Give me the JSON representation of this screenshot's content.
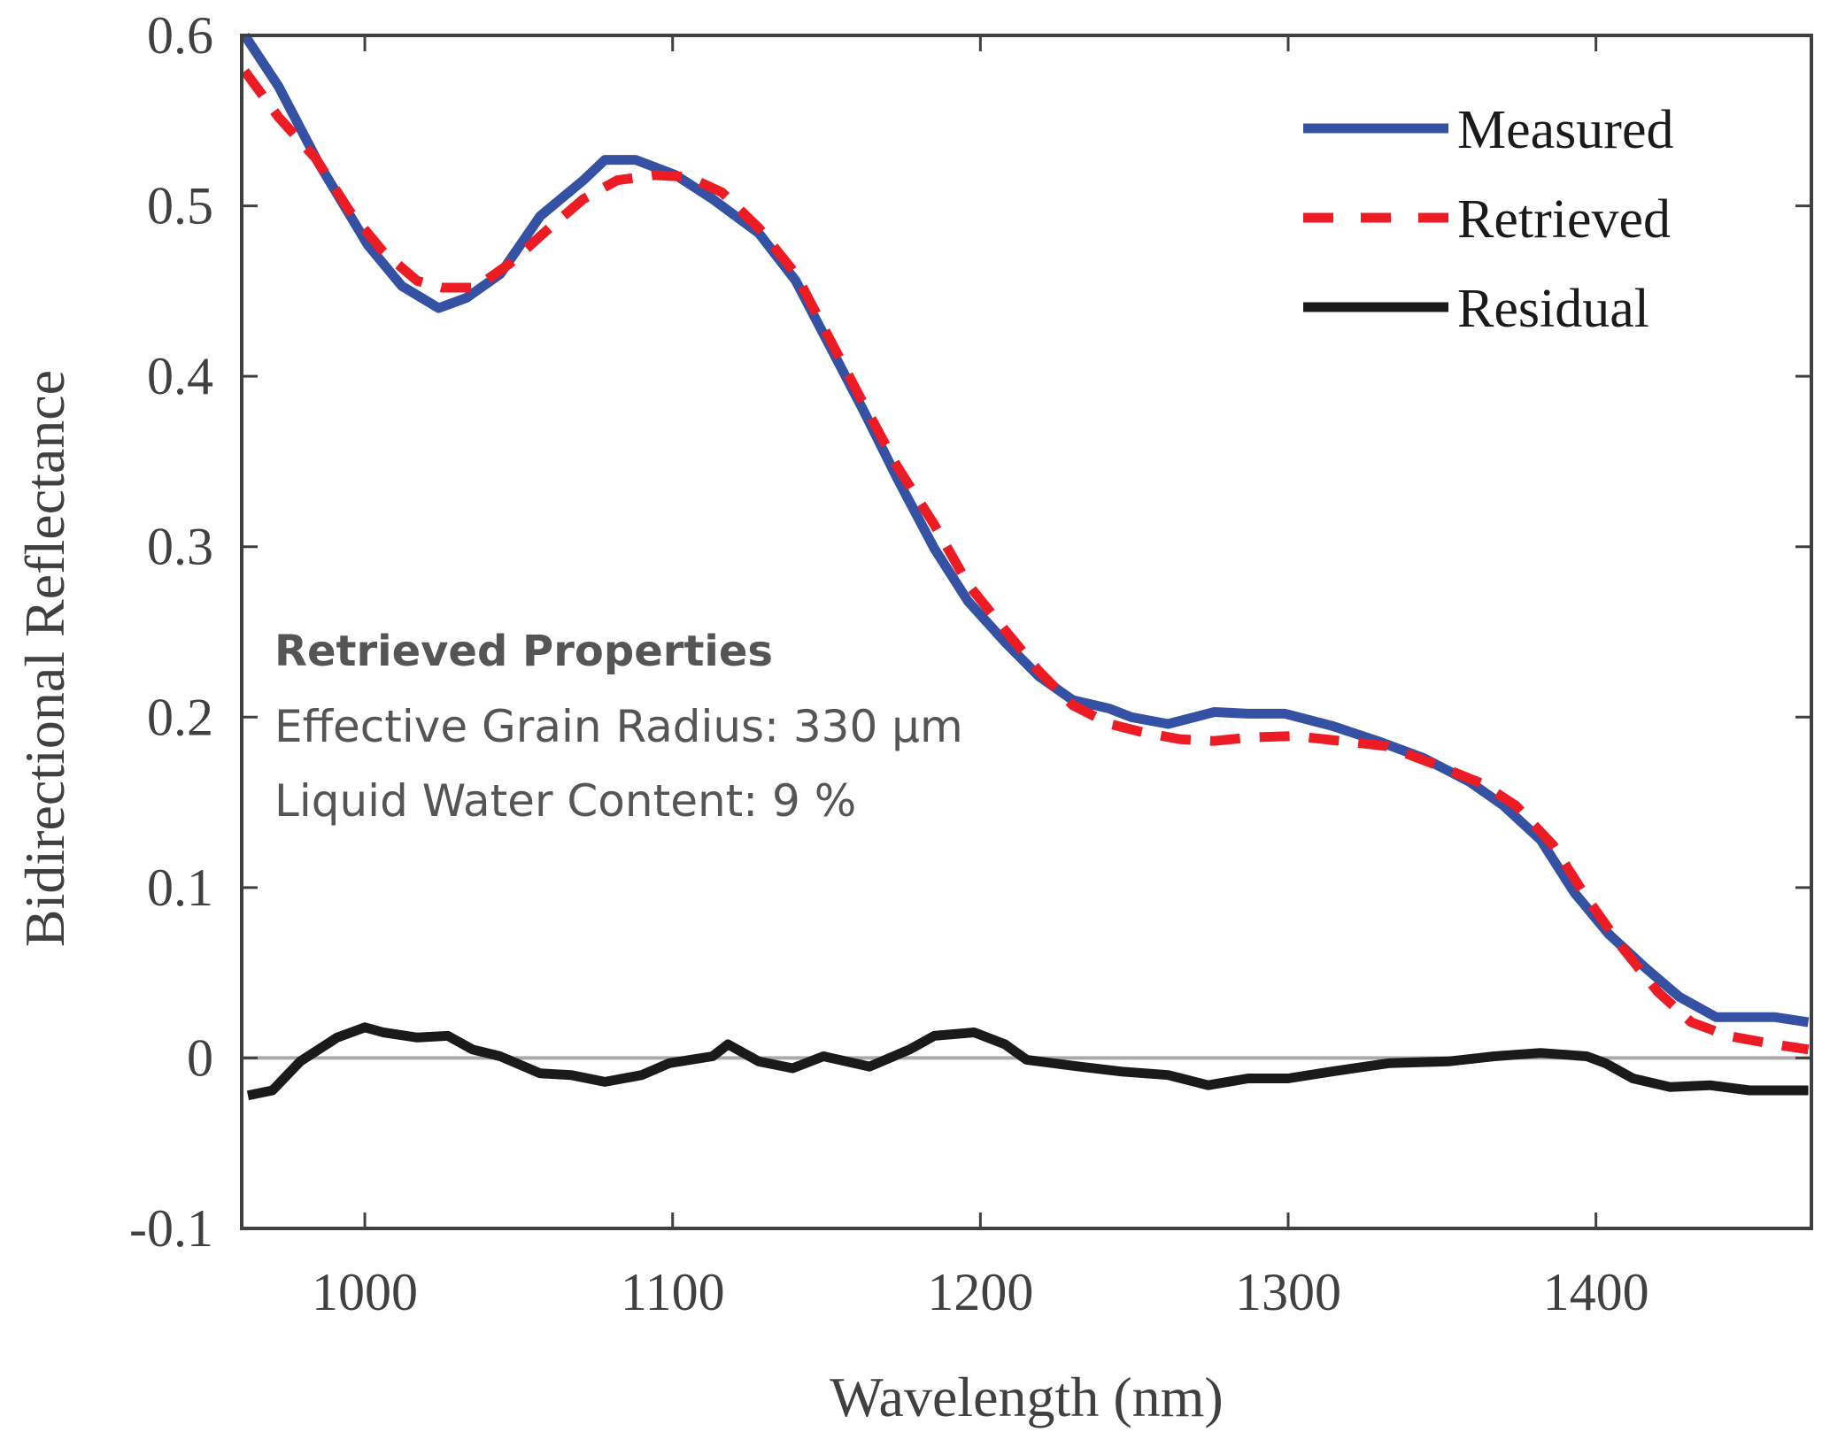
{
  "chart_data": {
    "type": "line",
    "title": "",
    "xlabel": "Wavelength (nm)",
    "ylabel": "Bidirectional Reflectance",
    "xlim": [
      960,
      1470
    ],
    "ylim": [
      -0.1,
      0.6
    ],
    "xticks": [
      1000,
      1100,
      1200,
      1300,
      1400
    ],
    "xtick_labels": [
      "1000",
      "1100",
      "1200",
      "1300",
      "1400"
    ],
    "yticks": [
      -0.1,
      0,
      0.1,
      0.2,
      0.3,
      0.4,
      0.5,
      0.6
    ],
    "ytick_labels": [
      "-0.1",
      "0",
      "0.1",
      "0.2",
      "0.3",
      "0.4",
      "0.5",
      "0.6"
    ],
    "grid": false,
    "zero_line": true,
    "legend_position": "top-right",
    "series": [
      {
        "name": "Measured",
        "color": "#3551a4",
        "style": "solid",
        "x": [
          961,
          972,
          985,
          1001,
          1012,
          1024,
          1033,
          1044,
          1057,
          1071,
          1078,
          1088,
          1101,
          1113,
          1128,
          1140,
          1151,
          1162,
          1173,
          1185,
          1196,
          1208,
          1219,
          1230,
          1242,
          1249,
          1261,
          1276,
          1287,
          1299,
          1314,
          1329,
          1344,
          1359,
          1370,
          1382,
          1393,
          1404,
          1416,
          1427,
          1439,
          1458,
          1469
        ],
        "y": [
          0.6,
          0.57,
          0.525,
          0.477,
          0.453,
          0.44,
          0.446,
          0.46,
          0.494,
          0.515,
          0.527,
          0.527,
          0.518,
          0.504,
          0.484,
          0.456,
          0.418,
          0.38,
          0.34,
          0.299,
          0.268,
          0.244,
          0.224,
          0.21,
          0.205,
          0.2,
          0.196,
          0.203,
          0.202,
          0.202,
          0.195,
          0.186,
          0.176,
          0.162,
          0.148,
          0.128,
          0.097,
          0.073,
          0.053,
          0.036,
          0.024,
          0.024,
          0.021
        ]
      },
      {
        "name": "Retrieved",
        "color": "#ed1c24",
        "style": "dashed",
        "x": [
          961,
          972,
          984,
          995,
          1006,
          1017,
          1025,
          1036,
          1047,
          1060,
          1071,
          1082,
          1094,
          1105,
          1116,
          1128,
          1140,
          1151,
          1162,
          1173,
          1185,
          1196,
          1208,
          1219,
          1230,
          1242,
          1253,
          1265,
          1276,
          1287,
          1302,
          1317,
          1332,
          1348,
          1363,
          1374,
          1386,
          1397,
          1408,
          1420,
          1431,
          1443,
          1458,
          1469
        ],
        "y": [
          0.579,
          0.552,
          0.528,
          0.497,
          0.473,
          0.456,
          0.452,
          0.452,
          0.466,
          0.487,
          0.504,
          0.515,
          0.518,
          0.517,
          0.508,
          0.487,
          0.46,
          0.422,
          0.384,
          0.347,
          0.313,
          0.278,
          0.251,
          0.227,
          0.207,
          0.196,
          0.191,
          0.187,
          0.186,
          0.188,
          0.189,
          0.186,
          0.183,
          0.172,
          0.161,
          0.148,
          0.125,
          0.094,
          0.066,
          0.039,
          0.021,
          0.013,
          0.008,
          0.005
        ]
      },
      {
        "name": "Residual",
        "color": "#1a1a1a",
        "style": "solid",
        "x": [
          962,
          970,
          979,
          991,
          1000,
          1006,
          1017,
          1027,
          1035,
          1044,
          1057,
          1067,
          1078,
          1090,
          1099,
          1113,
          1118,
          1128,
          1139,
          1149,
          1164,
          1177,
          1185,
          1198,
          1208,
          1215,
          1232,
          1246,
          1261,
          1274,
          1287,
          1300,
          1314,
          1333,
          1352,
          1367,
          1382,
          1397,
          1403,
          1412,
          1424,
          1437,
          1450,
          1469
        ],
        "y": [
          -0.022,
          -0.019,
          -0.002,
          0.012,
          0.018,
          0.015,
          0.012,
          0.013,
          0.005,
          0.001,
          -0.009,
          -0.01,
          -0.014,
          -0.01,
          -0.003,
          0.001,
          0.008,
          -0.002,
          -0.006,
          0.001,
          -0.005,
          0.005,
          0.013,
          0.015,
          0.008,
          -0.001,
          -0.005,
          -0.008,
          -0.01,
          -0.016,
          -0.012,
          -0.012,
          -0.008,
          -0.003,
          -0.002,
          0.001,
          0.003,
          0.001,
          -0.003,
          -0.012,
          -0.017,
          -0.016,
          -0.019,
          -0.019
        ]
      }
    ],
    "annotation": {
      "title": "Retrieved Properties",
      "lines": [
        "Effective Grain Radius: 330 µm",
        "Liquid Water Content: 9 %"
      ]
    }
  }
}
